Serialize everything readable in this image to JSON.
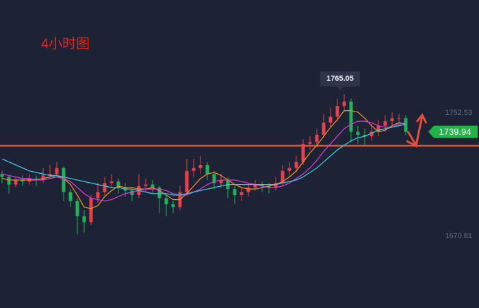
{
  "chart_data": {
    "type": "candlestick",
    "title": "4小时图",
    "open": [
      1712,
      1710,
      1705,
      1708,
      1707,
      1709,
      1708,
      1711,
      1712,
      1716,
      1700,
      1694,
      1684,
      1680,
      1696,
      1700,
      1706,
      1707,
      1703,
      1701,
      1698,
      1704,
      1705,
      1703,
      1696,
      1692,
      1690,
      1700,
      1714,
      1716,
      1718,
      1712,
      1706,
      1708,
      1702,
      1698,
      1700,
      1703,
      1705,
      1704,
      1703,
      1706,
      1714,
      1716,
      1720,
      1732,
      1733,
      1738,
      1746,
      1750,
      1757,
      1760,
      1740,
      1738,
      1737,
      1740,
      1744,
      1747,
      1749,
      1749
    ],
    "high": [
      1714,
      1711,
      1710,
      1711,
      1712,
      1711,
      1716,
      1718,
      1720,
      1717,
      1702,
      1696,
      1688,
      1698,
      1706,
      1710,
      1712,
      1709,
      1706,
      1703,
      1712,
      1709,
      1708,
      1704,
      1698,
      1694,
      1704,
      1722,
      1722,
      1724,
      1720,
      1714,
      1712,
      1710,
      1704,
      1703,
      1706,
      1708,
      1707,
      1706,
      1710,
      1718,
      1720,
      1724,
      1735,
      1737,
      1742,
      1752,
      1756,
      1762,
      1765.05,
      1762,
      1744,
      1742,
      1745,
      1748,
      1751,
      1753,
      1752,
      1751
    ],
    "low": [
      1706,
      1699,
      1703,
      1704,
      1705,
      1704,
      1706,
      1709,
      1710,
      1694,
      1690,
      1672,
      1673,
      1678,
      1693,
      1698,
      1703,
      1699,
      1697,
      1694,
      1696,
      1700,
      1699,
      1686,
      1684,
      1686,
      1688,
      1698,
      1710,
      1712,
      1708,
      1702,
      1703,
      1696,
      1692,
      1694,
      1697,
      1701,
      1700,
      1699,
      1701,
      1704,
      1711,
      1713,
      1718,
      1728,
      1730,
      1736,
      1743,
      1747,
      1754,
      1733,
      1732,
      1731,
      1734,
      1737,
      1740,
      1744,
      1745,
      1738
    ],
    "close": [
      1710,
      1705,
      1708,
      1707,
      1709,
      1708,
      1711,
      1712,
      1716,
      1700,
      1694,
      1684,
      1680,
      1696,
      1700,
      1706,
      1707,
      1703,
      1701,
      1698,
      1704,
      1705,
      1703,
      1696,
      1692,
      1690,
      1700,
      1714,
      1716,
      1718,
      1712,
      1706,
      1708,
      1702,
      1698,
      1700,
      1703,
      1705,
      1704,
      1703,
      1706,
      1714,
      1716,
      1720,
      1732,
      1733,
      1738,
      1746,
      1750,
      1757,
      1760,
      1740,
      1738,
      1737,
      1740,
      1744,
      1747,
      1749,
      1749,
      1739.94
    ],
    "up_color": "#e8404c",
    "down_color": "#1fb35a",
    "lines": [
      {
        "color": "#f08a24",
        "values": [
          1709,
          1708,
          1708,
          1708,
          1708,
          1708,
          1709,
          1710,
          1711,
          1709,
          1705,
          1698,
          1690,
          1689,
          1691,
          1697,
          1701,
          1704,
          1703,
          1703,
          1702,
          1702,
          1703,
          1701,
          1698,
          1695,
          1695,
          1699,
          1704,
          1709,
          1712,
          1713,
          1711,
          1708,
          1705,
          1703,
          1702,
          1702,
          1703,
          1704,
          1705,
          1707,
          1710,
          1714,
          1720,
          1726,
          1731,
          1737,
          1743,
          1748,
          1754,
          1754,
          1753,
          1749,
          1744,
          1740,
          1741,
          1744,
          1746,
          1745
        ]
      },
      {
        "color": "#d43ad8",
        "values": [
          1712,
          1711,
          1710,
          1709,
          1709,
          1708,
          1708,
          1709,
          1710,
          1709,
          1707,
          1703,
          1699,
          1696,
          1695,
          1694,
          1695,
          1697,
          1699,
          1700,
          1701,
          1702,
          1702,
          1702,
          1701,
          1699,
          1698,
          1698,
          1700,
          1702,
          1705,
          1707,
          1708,
          1708,
          1708,
          1707,
          1706,
          1705,
          1704,
          1703,
          1703,
          1704,
          1706,
          1709,
          1712,
          1716,
          1721,
          1727,
          1732,
          1737,
          1742,
          1745,
          1747,
          1747,
          1746,
          1744,
          1743,
          1743,
          1745,
          1746
        ]
      },
      {
        "color": "#3cc6dc",
        "values": [
          1722,
          1720,
          1718,
          1716,
          1714,
          1713,
          1712,
          1711,
          1711,
          1710,
          1709,
          1708,
          1707,
          1706,
          1705,
          1704,
          1703,
          1703,
          1702,
          1702,
          1701,
          1700,
          1699,
          1699,
          1699,
          1698,
          1698,
          1699,
          1700,
          1701,
          1702,
          1703,
          1704,
          1705,
          1705,
          1705,
          1705,
          1705,
          1705,
          1705,
          1705,
          1706,
          1707,
          1708,
          1710,
          1713,
          1716,
          1720,
          1724,
          1728,
          1731,
          1734,
          1736,
          1737,
          1739,
          1741,
          1742,
          1743,
          1744,
          1745
        ]
      }
    ],
    "hline": 1730.7,
    "hline_color": "#e0503a",
    "ylim": [
      1623.1,
      1827.4
    ],
    "yticks": [
      1752.53,
      1670.81
    ]
  }
}
